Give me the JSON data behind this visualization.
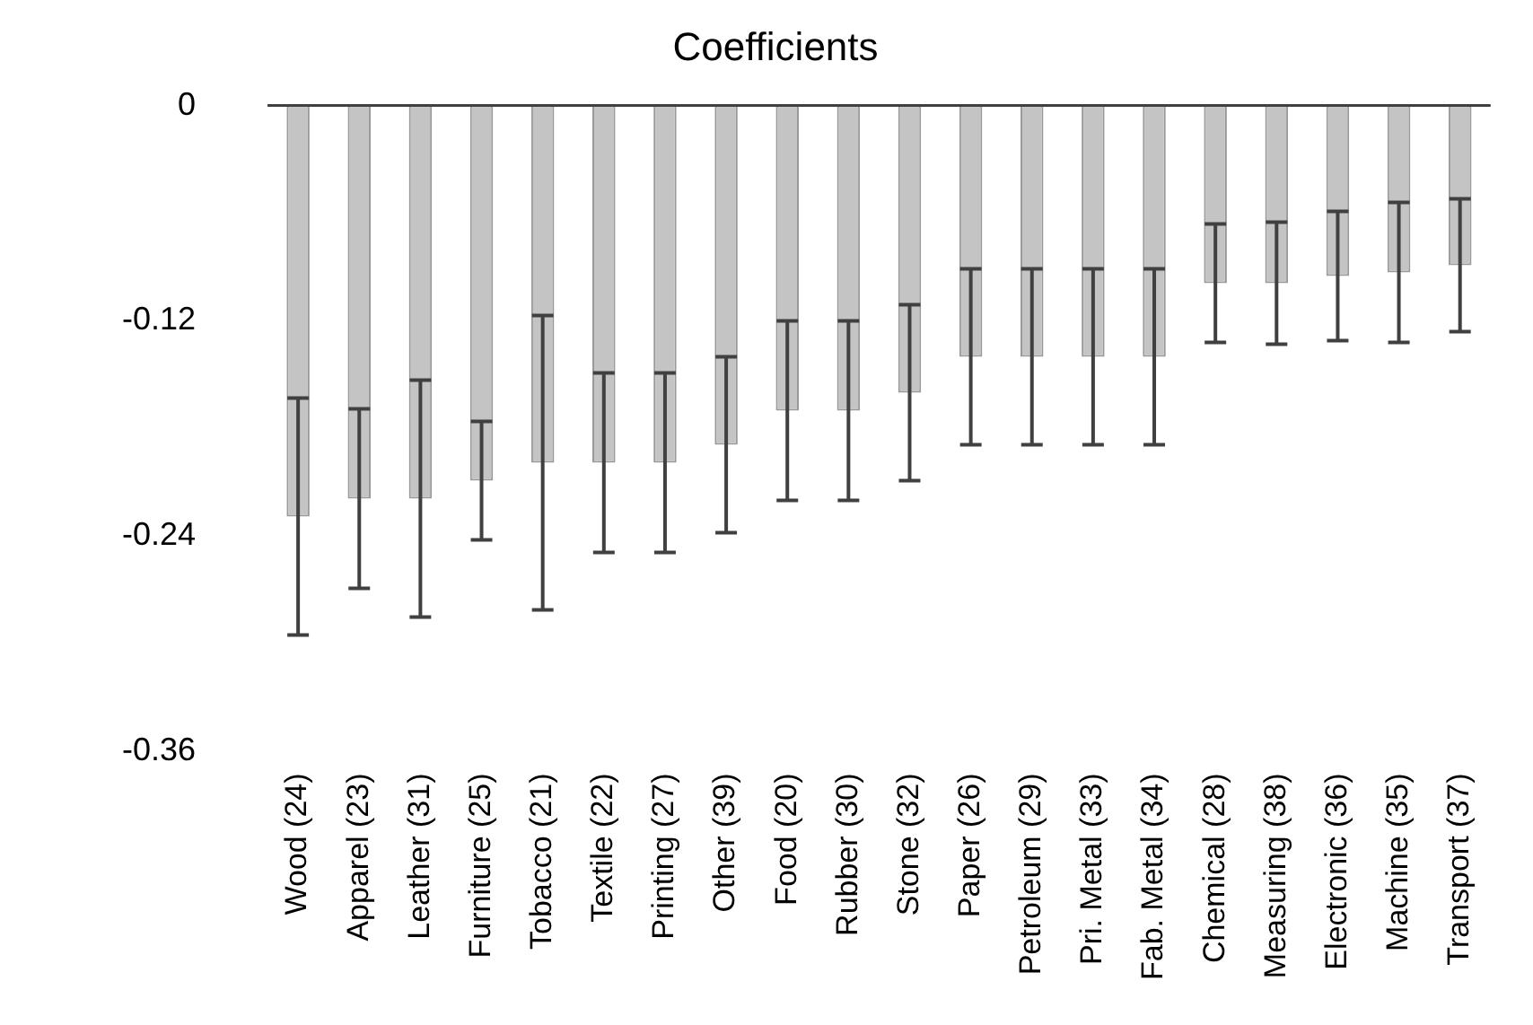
{
  "chart_data": {
    "type": "bar",
    "title": "Coefficients",
    "categories": [
      "Wood (24)",
      "Apparel (23)",
      "Leather (31)",
      "Furniture (25)",
      "Tobacco (21)",
      "Textile (22)",
      "Printing (27)",
      "Other (39)",
      "Food (20)",
      "Rubber (30)",
      "Stone (32)",
      "Paper (26)",
      "Petroleum (29)",
      "Pri. Metal (33)",
      "Fab. Metal (34)",
      "Chemical (28)",
      "Measuring (38)",
      "Electronic (36)",
      "Machine (35)",
      "Transport (37)"
    ],
    "values": [
      -0.229,
      -0.219,
      -0.219,
      -0.209,
      -0.199,
      -0.199,
      -0.199,
      -0.189,
      -0.17,
      -0.17,
      -0.16,
      -0.14,
      -0.14,
      -0.14,
      -0.14,
      -0.099,
      -0.099,
      -0.095,
      -0.093,
      -0.089
    ],
    "errors": [
      0.066,
      0.05,
      0.066,
      0.033,
      0.082,
      0.05,
      0.05,
      0.049,
      0.05,
      0.05,
      0.049,
      0.049,
      0.049,
      0.049,
      0.049,
      0.033,
      0.034,
      0.036,
      0.039,
      0.037
    ],
    "color": "#c4c4c4",
    "ylim": [
      -0.36,
      0
    ],
    "yticks": [
      -0.36,
      -0.24,
      -0.12,
      0
    ],
    "grid": false,
    "legend": false
  }
}
